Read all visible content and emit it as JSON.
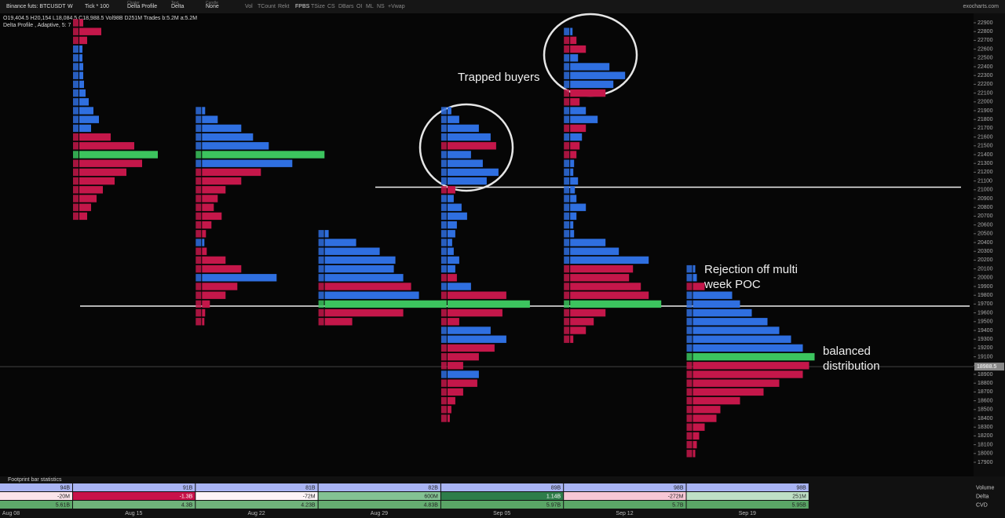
{
  "toolbar": {
    "symbol": "Binance futs: BTCUSDT",
    "timeframe": "W",
    "tick": "Tick * 100",
    "cluster_label": "Cluster",
    "cluster": "Delta Profile",
    "text_label": "Text",
    "text": "Delta",
    "candle_label": "Candle",
    "candle": "None",
    "toggles": [
      "Vol",
      "TCount",
      "Rekt",
      "FPBS",
      "TSize",
      "CS",
      "DBars",
      "OI",
      "ML",
      "NS",
      "+Vwap"
    ],
    "site": "exocharts.com"
  },
  "legend": {
    "ohlc": "O19,404.5 H20,154 L18,084.5 C18,988.5 Vol98B D251M Trades b:5.2M a:5.2M",
    "study": "Delta Profile , Adaptive, 5: 7"
  },
  "chart_data": {
    "type": "delta-profile",
    "ylim": [
      17900,
      22900
    ],
    "yticks": [
      22900,
      22800,
      22700,
      22600,
      22500,
      22400,
      22300,
      22200,
      22100,
      22000,
      21900,
      21800,
      21700,
      21600,
      21500,
      21400,
      21300,
      21200,
      21100,
      21000,
      20900,
      20800,
      20700,
      20600,
      20500,
      20400,
      20300,
      20200,
      20100,
      20000,
      19900,
      19800,
      19700,
      19600,
      19500,
      19400,
      19300,
      19200,
      19100,
      19000,
      18900,
      18800,
      18700,
      18600,
      18500,
      18400,
      18300,
      18200,
      18100,
      18000,
      17900
    ],
    "last_price": 18988.5,
    "colors": {
      "buy": "#2f6fe0",
      "sell": "#c4174a",
      "poc": "#3cc45e"
    },
    "profiles": [
      {
        "high": 22900,
        "poc": 15,
        "values": [
          -5,
          -28,
          -10,
          4,
          4,
          5,
          5,
          6,
          8,
          12,
          18,
          25,
          15,
          -40,
          -70,
          100,
          -80,
          -60,
          -45,
          -30,
          -22,
          -15,
          -10
        ]
      },
      {
        "high": 21900,
        "poc": 5,
        "values": [
          4,
          20,
          50,
          65,
          85,
          156,
          115,
          -75,
          -50,
          -30,
          -20,
          -15,
          -25,
          -12,
          -5,
          3,
          -6,
          -30,
          -50,
          95,
          -45,
          -30,
          -10,
          -4,
          -3
        ]
      },
      {
        "high": 20500,
        "poc": 8,
        "values": [
          5,
          40,
          70,
          90,
          88,
          100,
          -110,
          120,
          155,
          -100,
          -35
        ]
      },
      {
        "high": 21900,
        "poc": 22,
        "values": [
          5,
          15,
          40,
          55,
          -62,
          30,
          45,
          65,
          50,
          -10,
          8,
          18,
          25,
          12,
          10,
          6,
          8,
          15,
          10,
          -12,
          30,
          -75,
          105,
          -70,
          -15,
          55,
          75,
          -60,
          -40,
          -20,
          40,
          -38,
          -20,
          -10,
          -5,
          -3
        ]
      },
      {
        "high": 22800,
        "poc": 31,
        "values": [
          3,
          -8,
          -20,
          10,
          50,
          70,
          55,
          -45,
          -12,
          20,
          35,
          -20,
          15,
          -12,
          -8,
          5,
          4,
          10,
          6,
          8,
          20,
          8,
          4,
          5,
          45,
          62,
          100,
          -80,
          -75,
          -90,
          -100,
          116,
          -45,
          -30,
          -20,
          -4
        ]
      },
      {
        "high": 20100,
        "poc": 10,
        "values": [
          3,
          5,
          -15,
          50,
          60,
          75,
          95,
          110,
          125,
          140,
          155,
          -148,
          -140,
          -110,
          -90,
          -60,
          -35,
          -30,
          -15,
          -8,
          -5,
          -3
        ]
      }
    ],
    "annotations": [
      "Trapped buyers",
      "Rejection off multi week POC",
      "balanced distribution"
    ],
    "dates": [
      "Aug 08",
      "Aug 15",
      "Aug 22",
      "Aug 29",
      "Sep 05",
      "Sep 12",
      "Sep 19"
    ]
  },
  "stats": {
    "title": "Footprint bar statistics",
    "rows": [
      {
        "name": "Volume",
        "values": [
          "94B",
          "91B",
          "81B",
          "82B",
          "89B",
          "98B",
          "98B"
        ],
        "colors": [
          "#a9b4f3",
          "#a9b4f3",
          "#a9b4f3",
          "#a9b4f3",
          "#a9b4f3",
          "#a9b4f3",
          "#a9b4f3"
        ]
      },
      {
        "name": "Delta",
        "values": [
          "-20M",
          "-1.3B",
          "-72M",
          "600M",
          "1.14B",
          "-272M",
          "251M"
        ],
        "colors": [
          "#fbe4ea",
          "#c8124a",
          "#fdf4f6",
          "#83c293",
          "#2e7d4a",
          "#f7c7d5",
          "#bfe0c6"
        ]
      },
      {
        "name": "CVD",
        "values": [
          "5.61B",
          "4.3B",
          "4.23B",
          "4.83B",
          "5.97B",
          "5.7B",
          "5.95B"
        ],
        "colors": [
          "#5ea86a",
          "#6fb27a",
          "#70b37b",
          "#65ad71",
          "#5aa566",
          "#5ba667",
          "#5aa566"
        ]
      }
    ]
  }
}
